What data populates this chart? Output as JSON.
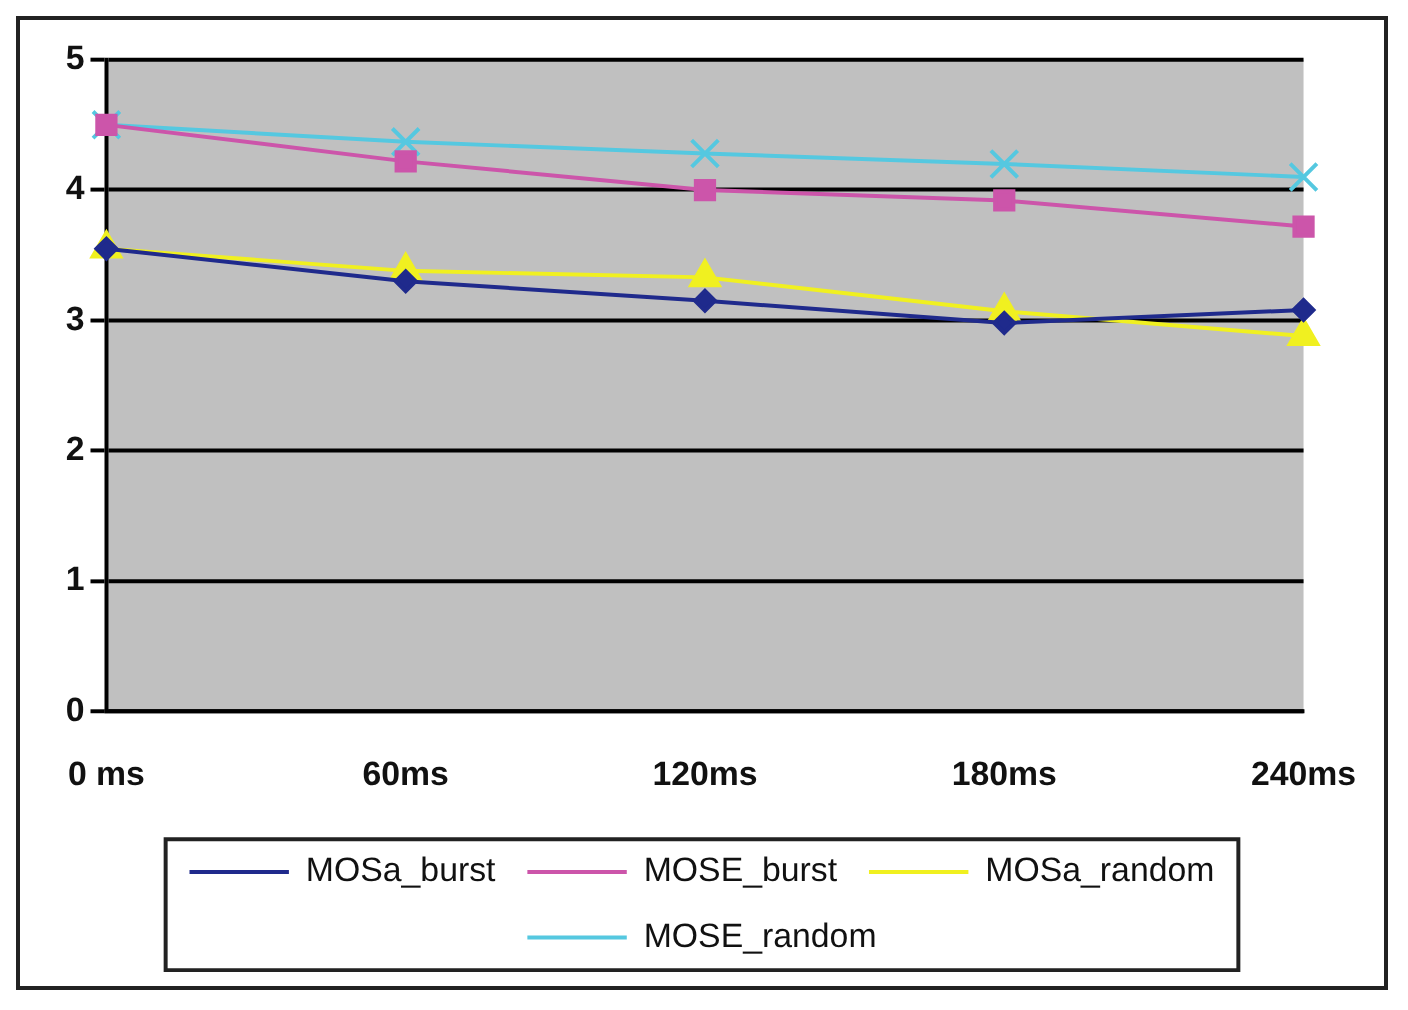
{
  "chart_data": {
    "type": "line",
    "categories": [
      "0 ms",
      "60ms",
      "120ms",
      "180ms",
      "240ms"
    ],
    "series": [
      {
        "name": "MOSa_burst",
        "color": "#1f2a8c",
        "marker": "diamond",
        "values": [
          3.55,
          3.3,
          3.15,
          2.98,
          3.08
        ]
      },
      {
        "name": "MOSE_burst",
        "color": "#cc55aa",
        "marker": "square",
        "values": [
          4.5,
          4.22,
          4.0,
          3.92,
          3.72
        ]
      },
      {
        "name": "MOSa_random",
        "color": "#f0f020",
        "marker": "triangle",
        "values": [
          3.55,
          3.38,
          3.33,
          3.07,
          2.88
        ]
      },
      {
        "name": "MOSE_random",
        "color": "#55c8e0",
        "marker": "cross",
        "values": [
          4.5,
          4.37,
          4.28,
          4.2,
          4.1
        ]
      }
    ],
    "ylim": [
      0,
      5
    ],
    "yticks": [
      0,
      1,
      2,
      3,
      4,
      5
    ],
    "grid": "y",
    "legend": "bottom"
  }
}
